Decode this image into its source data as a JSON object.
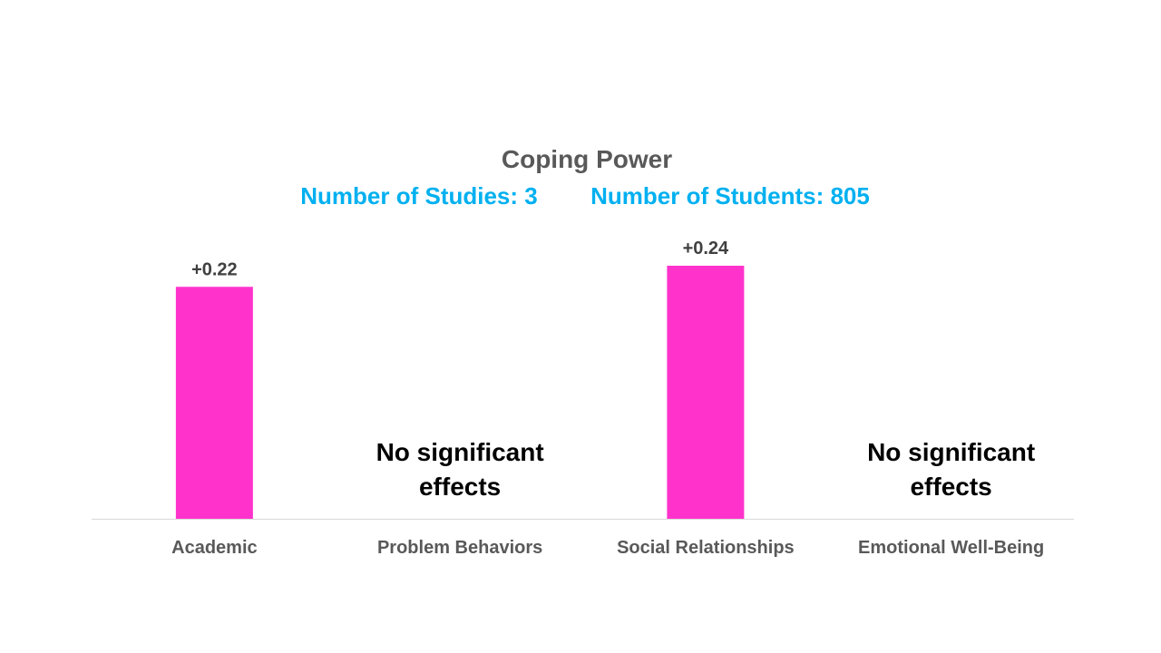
{
  "chart_data": {
    "type": "bar",
    "title": "Coping Power",
    "subtitle_left": "Number of Studies: 3",
    "subtitle_right": "Number of Students: 805",
    "categories": [
      "Academic",
      "Problem Behaviors",
      "Social Relationships",
      "Emotional Well-Being"
    ],
    "values": [
      0.22,
      null,
      0.24,
      null
    ],
    "value_labels": [
      "+0.22",
      "",
      "+0.24",
      ""
    ],
    "no_effect_text": [
      "",
      "No significant|effects",
      "",
      "No significant|effects"
    ],
    "ylim": [
      0,
      0.24
    ],
    "grid": false,
    "legend": "none",
    "xlabel": "",
    "ylabel": ""
  },
  "colors": {
    "bar": "#ff33cc",
    "subtitle": "#00b0f0",
    "axis": "#d9d9d9"
  }
}
